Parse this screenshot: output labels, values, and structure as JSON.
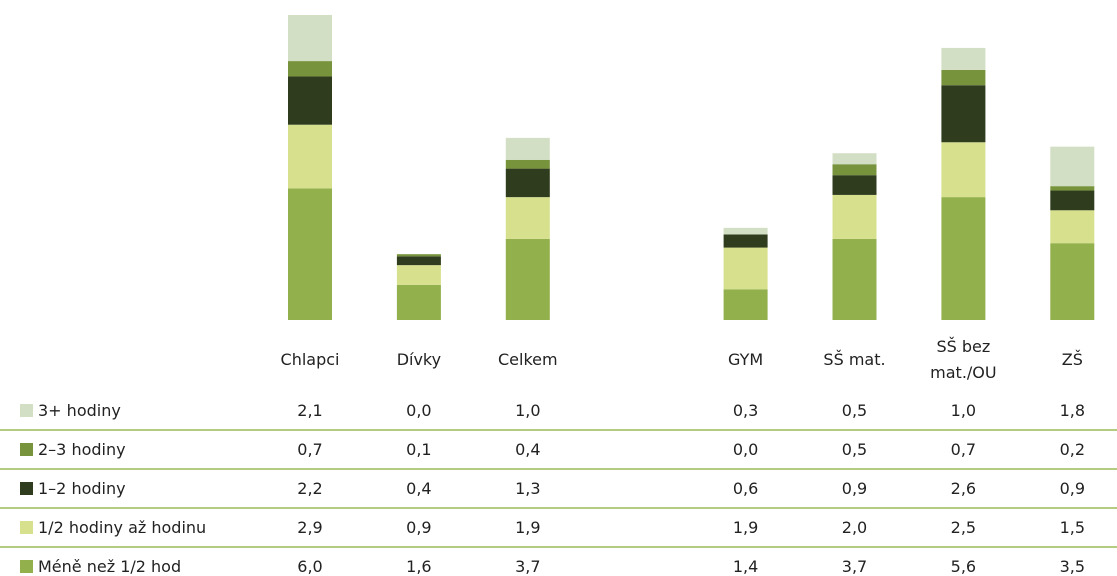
{
  "chart_data": {
    "type": "stacked_bar",
    "categories": [
      "Chlapci",
      "Dívky",
      "Celkem",
      null,
      "GYM",
      "SŠ mat.",
      "SŠ bez mat./OU",
      "ZŠ"
    ],
    "series": [
      {
        "name": "3+ hodiny",
        "color": "#d3dfc4",
        "values": [
          2.1,
          0.0,
          1.0,
          null,
          0.3,
          0.5,
          1.0,
          1.8
        ],
        "value_labels": [
          "2,1",
          "0,0",
          "1,0",
          null,
          "0,3",
          "0,5",
          "1,0",
          "1,8"
        ]
      },
      {
        "name": "2–3 hodiny",
        "color": "#77933c",
        "values": [
          0.7,
          0.1,
          0.4,
          null,
          0.0,
          0.5,
          0.7,
          0.2
        ],
        "value_labels": [
          "0,7",
          "0,1",
          "0,4",
          null,
          "0,0",
          "0,5",
          "0,7",
          "0,2"
        ]
      },
      {
        "name": "1–2 hodiny",
        "color": "#2f3d1e",
        "values": [
          2.2,
          0.4,
          1.3,
          null,
          0.6,
          0.9,
          2.6,
          0.9
        ],
        "value_labels": [
          "2,2",
          "0,4",
          "1,3",
          null,
          "0,6",
          "0,9",
          "2,6",
          "0,9"
        ]
      },
      {
        "name": "1/2 hodiny až hodinu",
        "color": "#d7e08c",
        "values": [
          2.9,
          0.9,
          1.9,
          null,
          1.9,
          2.0,
          2.5,
          1.5
        ],
        "value_labels": [
          "2,9",
          "0,9",
          "1,9",
          null,
          "1,9",
          "2,0",
          "2,5",
          "1,5"
        ]
      },
      {
        "name": "Méně než 1/2 hod",
        "color": "#92b04c",
        "values": [
          6.0,
          1.6,
          3.7,
          null,
          1.4,
          3.7,
          5.6,
          3.5
        ],
        "value_labels": [
          "6,0",
          "1,6",
          "3,7",
          null,
          "1,4",
          "3,7",
          "5,6",
          "3,5"
        ]
      }
    ]
  }
}
